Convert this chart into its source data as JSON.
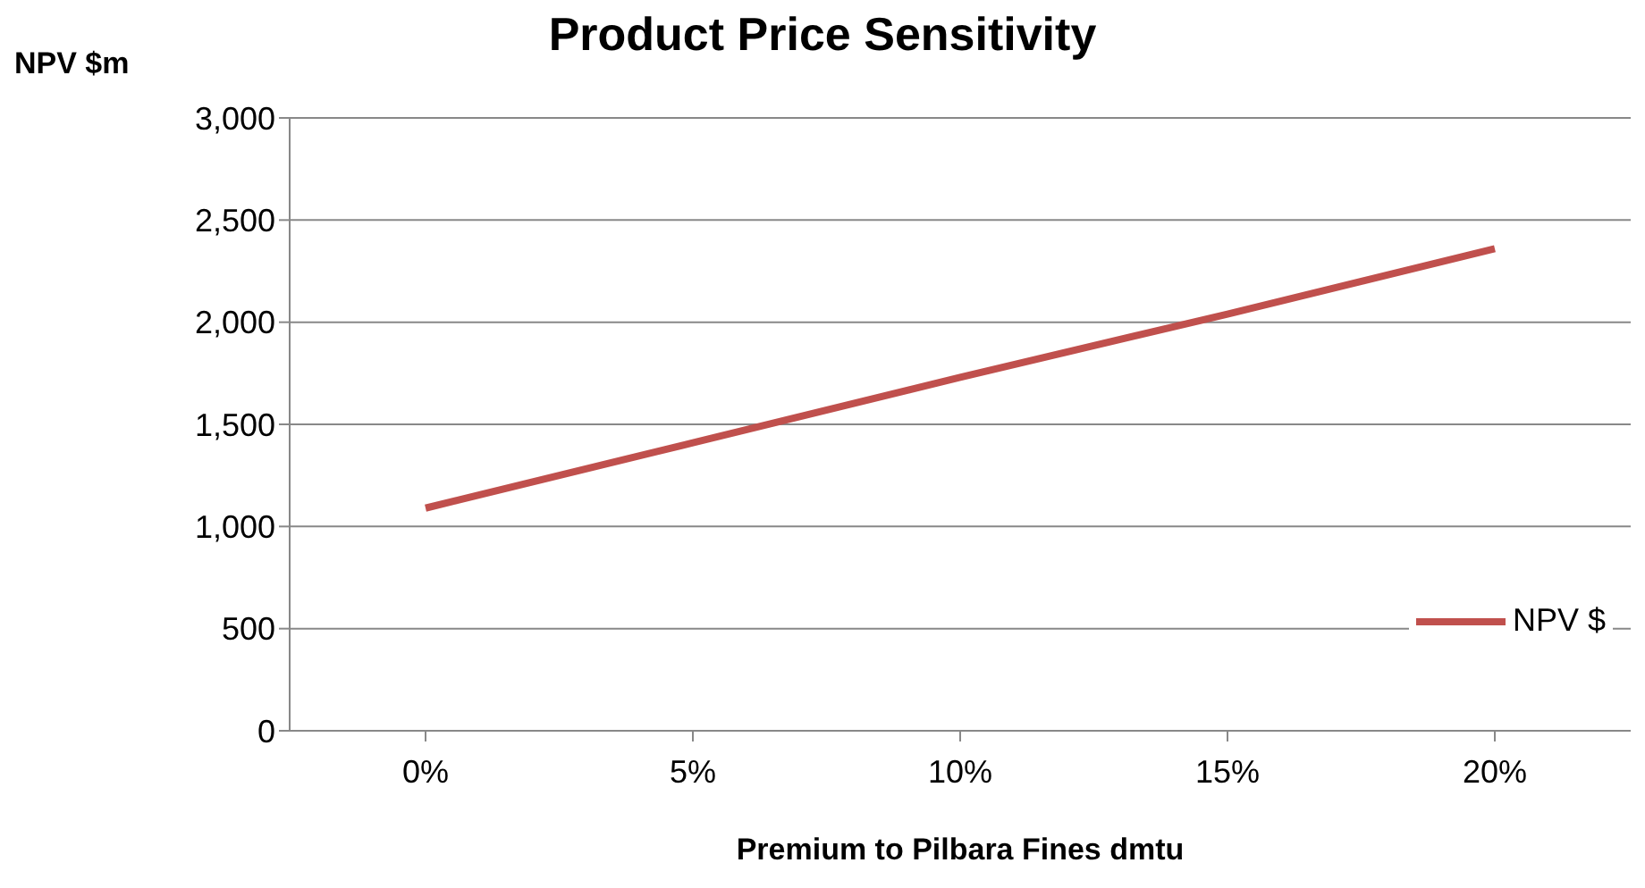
{
  "chart_data": {
    "type": "line",
    "title": "Product Price Sensitivity",
    "xlabel": "Premium to Pilbara Fines dmtu",
    "ylabel": "NPV $m",
    "categories": [
      "0%",
      "5%",
      "10%",
      "15%",
      "20%"
    ],
    "series": [
      {
        "name": "NPV $",
        "color": "#c0504d",
        "values": [
          1090,
          1410,
          1730,
          2040,
          2360
        ]
      }
    ],
    "ylim": [
      0,
      3000
    ],
    "yticks": [
      0,
      500,
      {
        "value": 1000,
        "label": "1,000"
      },
      {
        "value": 1500,
        "label": "1,500"
      },
      {
        "value": 2000,
        "label": "2,000"
      },
      {
        "value": 2500,
        "label": "2,500"
      },
      {
        "value": 3000,
        "label": "3,000"
      }
    ],
    "grid": "y",
    "legend": "right",
    "marker": "none"
  }
}
